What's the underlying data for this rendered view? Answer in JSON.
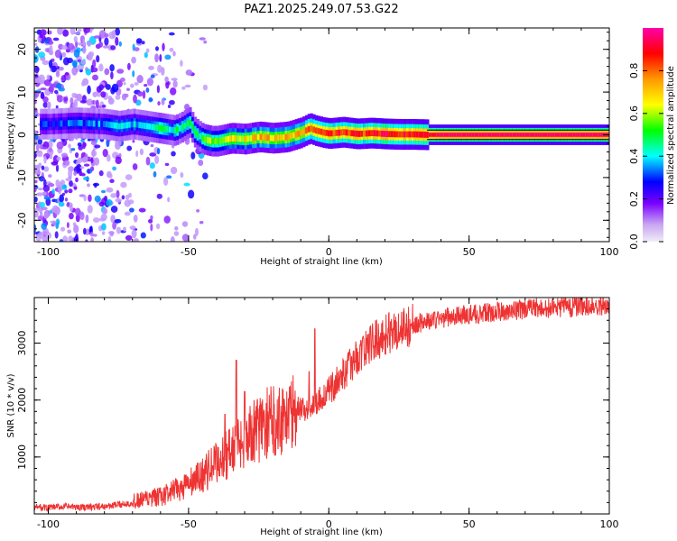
{
  "title": "PAZ1.2025.249.07.53.G22",
  "chart_data": [
    {
      "type": "heatmap",
      "xlabel": "Height of straight line (km)",
      "ylabel": "Frequency (Hz)",
      "xlim": [
        -105,
        100
      ],
      "ylim": [
        -25,
        25
      ],
      "x_ticks": [
        "-100",
        "-50",
        "0",
        "50",
        "100"
      ],
      "y_ticks": [
        "-20",
        "-10",
        "0",
        "10",
        "20"
      ],
      "colorbar": {
        "label": "Normalized spectral amplitude",
        "ticks": [
          "0.0",
          "0.2",
          "0.4",
          "0.6",
          "0.8"
        ],
        "range": [
          0,
          1
        ],
        "colormap": [
          "#e6e6fa",
          "#7a00ff",
          "#0000ff",
          "#00ffff",
          "#00ff00",
          "#ffff00",
          "#ff9900",
          "#ff0000",
          "#ff00aa"
        ]
      },
      "ridge": {
        "x": [
          -100,
          -90,
          -80,
          -75,
          -70,
          -65,
          -60,
          -55,
          -52,
          -50,
          -48,
          -45,
          -42,
          -40,
          -35,
          -30,
          -25,
          -20,
          -15,
          -10,
          -7,
          -5,
          -2,
          0,
          5,
          10,
          15,
          20,
          25,
          30,
          35,
          40,
          50,
          60,
          70,
          80,
          90,
          100
        ],
        "freq": [
          2.5,
          2.8,
          2.5,
          2.0,
          2.5,
          2.0,
          1.5,
          1.0,
          2.0,
          3.0,
          0.5,
          -1.0,
          -1.5,
          -1.5,
          -0.8,
          -1.0,
          -0.5,
          -0.8,
          -0.5,
          0.5,
          1.5,
          1.0,
          0.5,
          0.3,
          0.6,
          0.2,
          0.4,
          0.2,
          0.1,
          0.1,
          0.0,
          0.0,
          0.0,
          0.0,
          0.0,
          0.0,
          0.0,
          0.0
        ],
        "amplitude": [
          0.25,
          0.3,
          0.3,
          0.35,
          0.35,
          0.4,
          0.45,
          0.4,
          0.5,
          0.45,
          0.4,
          0.5,
          0.55,
          0.6,
          0.65,
          0.65,
          0.7,
          0.7,
          0.7,
          0.75,
          0.8,
          0.8,
          0.8,
          0.85,
          0.85,
          0.85,
          0.85,
          0.9,
          0.9,
          0.9,
          0.9,
          0.95,
          0.95,
          0.95,
          0.95,
          0.95,
          0.95,
          0.95
        ]
      },
      "noise_region_x": [
        -105,
        -50
      ]
    },
    {
      "type": "line",
      "xlabel": "Height of straight line (km)",
      "ylabel": "SNR (10 * v/v)",
      "xlim": [
        -105,
        100
      ],
      "ylim": [
        0,
        3800
      ],
      "x_ticks": [
        "-100",
        "-50",
        "0",
        "50",
        "100"
      ],
      "y_ticks": [
        "1000",
        "2000",
        "3000"
      ],
      "series": [
        {
          "color": "#ee3333",
          "x": [
            -105,
            -100,
            -95,
            -90,
            -85,
            -80,
            -75,
            -70,
            -65,
            -60,
            -55,
            -50,
            -45,
            -40,
            -35,
            -30,
            -25,
            -20,
            -15,
            -10,
            -5,
            0,
            5,
            10,
            15,
            20,
            25,
            30,
            35,
            40,
            45,
            50,
            55,
            60,
            65,
            70,
            75,
            80,
            85,
            90,
            95,
            100
          ],
          "y": [
            120,
            110,
            130,
            120,
            120,
            130,
            160,
            200,
            250,
            300,
            400,
            520,
            680,
            900,
            1100,
            1300,
            1500,
            1650,
            1750,
            1800,
            1950,
            2150,
            2450,
            2750,
            3000,
            3150,
            3250,
            3320,
            3380,
            3430,
            3480,
            3500,
            3520,
            3550,
            3570,
            3600,
            3610,
            3620,
            3640,
            3650,
            3660,
            3670
          ]
        }
      ],
      "spikes": [
        {
          "x": -33,
          "y": 2700
        },
        {
          "x": -30,
          "y": 2150
        },
        {
          "x": -37,
          "y": 1750
        },
        {
          "x": -5,
          "y": 3250
        },
        {
          "x": -7,
          "y": 2500
        }
      ]
    }
  ]
}
